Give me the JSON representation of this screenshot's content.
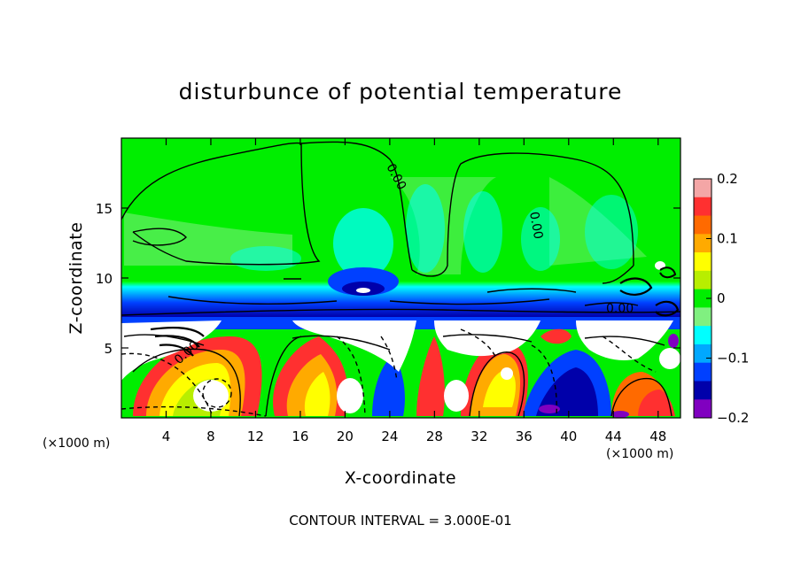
{
  "chart_data": {
    "type": "heatmap",
    "title": "disturbunce of potential temperature",
    "xlabel": "X-coordinate",
    "ylabel": "Z-coordinate",
    "x_unit": "(×1000 m)",
    "z_unit": "(×1000 m)",
    "xlim": [
      0,
      50
    ],
    "ylim": [
      0,
      20
    ],
    "x_ticks": [
      4,
      8,
      12,
      16,
      20,
      24,
      28,
      32,
      36,
      40,
      44,
      48
    ],
    "y_ticks": [
      5,
      10,
      15
    ],
    "colorbar": {
      "min": -0.2,
      "max": 0.2,
      "ticks": [
        0.2,
        0.1,
        0,
        -0.1,
        -0.2
      ],
      "tick_labels": [
        "0.2",
        "0.1",
        "0",
        "−0.1",
        "−0.2"
      ],
      "colors": [
        "#f4a6a6",
        "#ff3030",
        "#ff6a00",
        "#ffaa00",
        "#ffff00",
        "#b8ee00",
        "#00ee00",
        "#80f080",
        "#00ffff",
        "#00a8ff",
        "#0040ff",
        "#0000aa",
        "#8000c0"
      ]
    },
    "contour_labels": [
      "0.00",
      "0.00",
      "0.00",
      "0.00"
    ],
    "contour_interval": "CONTOUR INTERVAL = 3.000E-01"
  }
}
